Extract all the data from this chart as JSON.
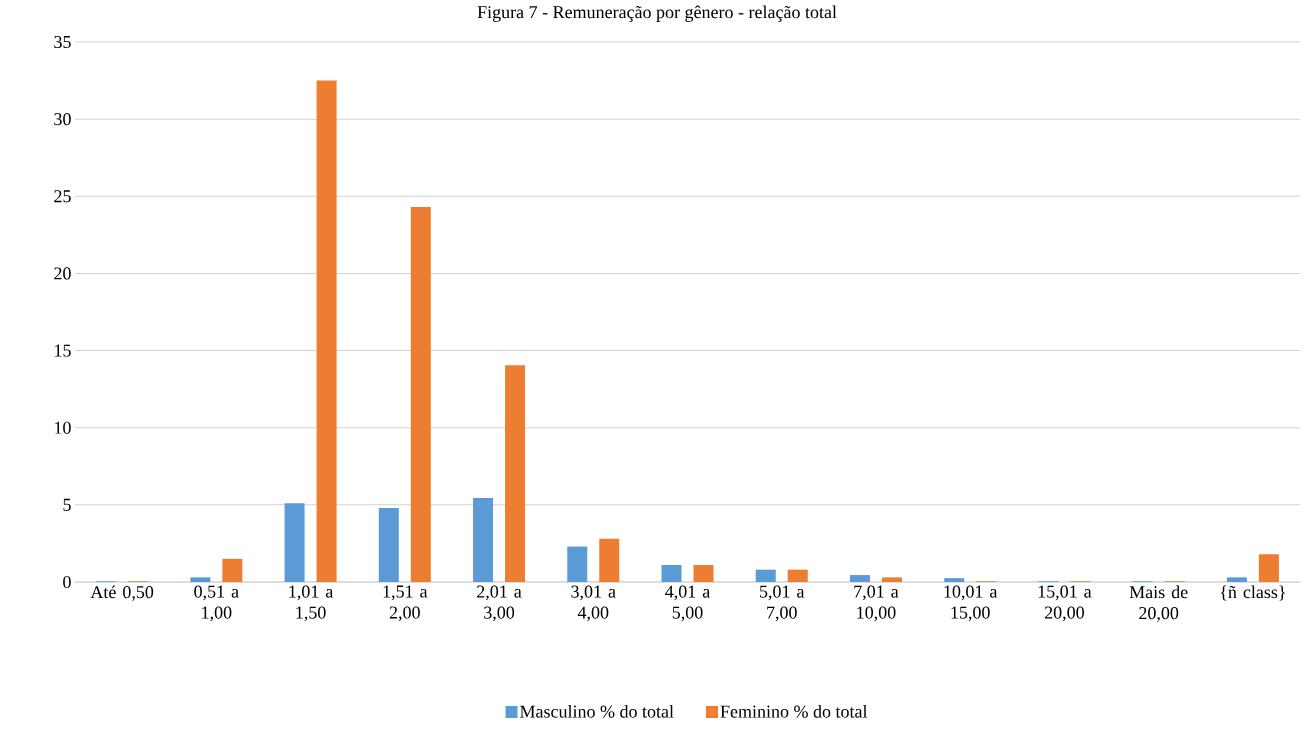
{
  "chart_data": {
    "type": "bar",
    "title": "Figura 7 - Remuneração por gênero - relação total",
    "categories": [
      "Até 0,50",
      "0,51 a 1,00",
      "1,01 a 1,50",
      "1,51 a 2,00",
      "2,01 a 3,00",
      "3,01 a 4,00",
      "4,01 a 5,00",
      "5,01 a 7,00",
      "7,01 a 10,00",
      "10,01 a 15,00",
      "15,01 a 20,00",
      "Mais de 20,00",
      "{ñ class}"
    ],
    "series": [
      {
        "name": "Masculino % do total",
        "color": "#5b9bd5",
        "values": [
          0.05,
          0.3,
          5.1,
          4.8,
          5.45,
          2.3,
          1.1,
          0.8,
          0.45,
          0.25,
          0.05,
          0.05,
          0.3
        ]
      },
      {
        "name": "Feminino % do total",
        "color": "#ed7d31",
        "values": [
          0.05,
          1.5,
          32.5,
          24.3,
          14.05,
          2.8,
          1.1,
          0.8,
          0.3,
          0.05,
          0.05,
          0.05,
          1.8
        ]
      }
    ],
    "ylim": [
      0,
      35
    ],
    "yticks": [
      0,
      5,
      10,
      15,
      20,
      25,
      30,
      35
    ],
    "grid": "y",
    "legend": "bottom"
  }
}
